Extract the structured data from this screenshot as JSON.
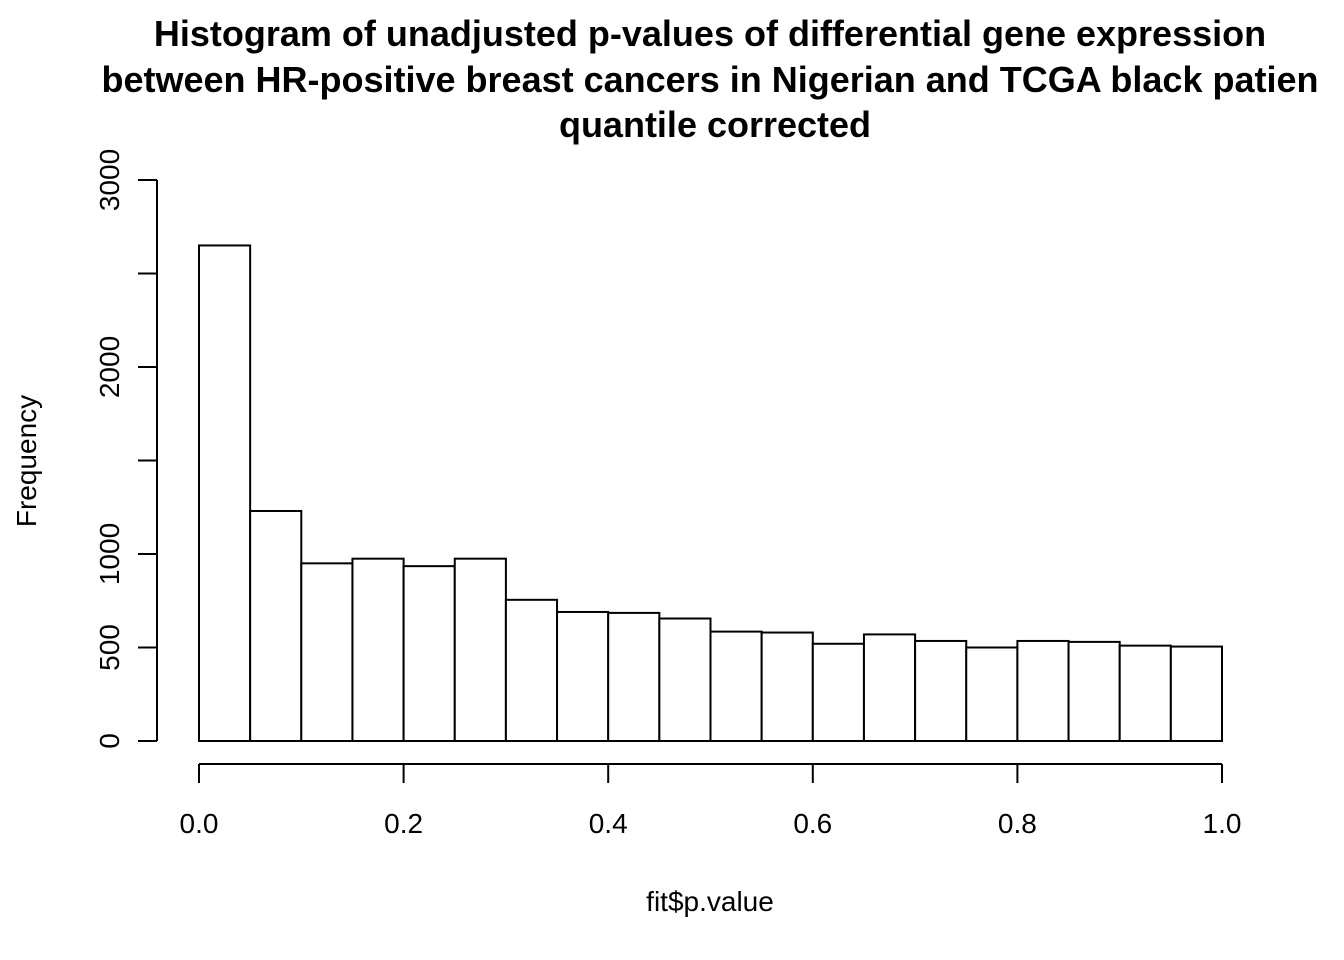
{
  "chart_data": {
    "type": "bar",
    "title_lines": [
      "Histogram of unadjusted p-values of differential gene expression",
      "between HR-positive breast cancers in Nigerian and TCGA black patien",
      "quantile corrected"
    ],
    "xlabel": "fit$p.value",
    "ylabel": "Frequency",
    "xlim": [
      0,
      1
    ],
    "ylim": [
      0,
      3000
    ],
    "x_ticks": [
      0.0,
      0.2,
      0.4,
      0.6,
      0.8,
      1.0
    ],
    "x_tick_labels": [
      "0.0",
      "0.2",
      "0.4",
      "0.6",
      "0.8",
      "1.0"
    ],
    "y_ticks": [
      0,
      500,
      1000,
      1500,
      2000,
      2500,
      3000
    ],
    "y_tick_labels": [
      "0",
      "500",
      "1000",
      "",
      "2000",
      "",
      "3000"
    ],
    "bin_width": 0.05,
    "bins": [
      0.0,
      0.05,
      0.1,
      0.15,
      0.2,
      0.25,
      0.3,
      0.35,
      0.4,
      0.45,
      0.5,
      0.55,
      0.6,
      0.65,
      0.7,
      0.75,
      0.8,
      0.85,
      0.9,
      0.95
    ],
    "values": [
      2650,
      1230,
      950,
      975,
      935,
      975,
      755,
      690,
      685,
      655,
      585,
      580,
      520,
      570,
      535,
      500,
      535,
      530,
      510,
      505
    ],
    "bar_fill": "#ffffff",
    "bar_stroke": "#000000",
    "grid": false
  }
}
